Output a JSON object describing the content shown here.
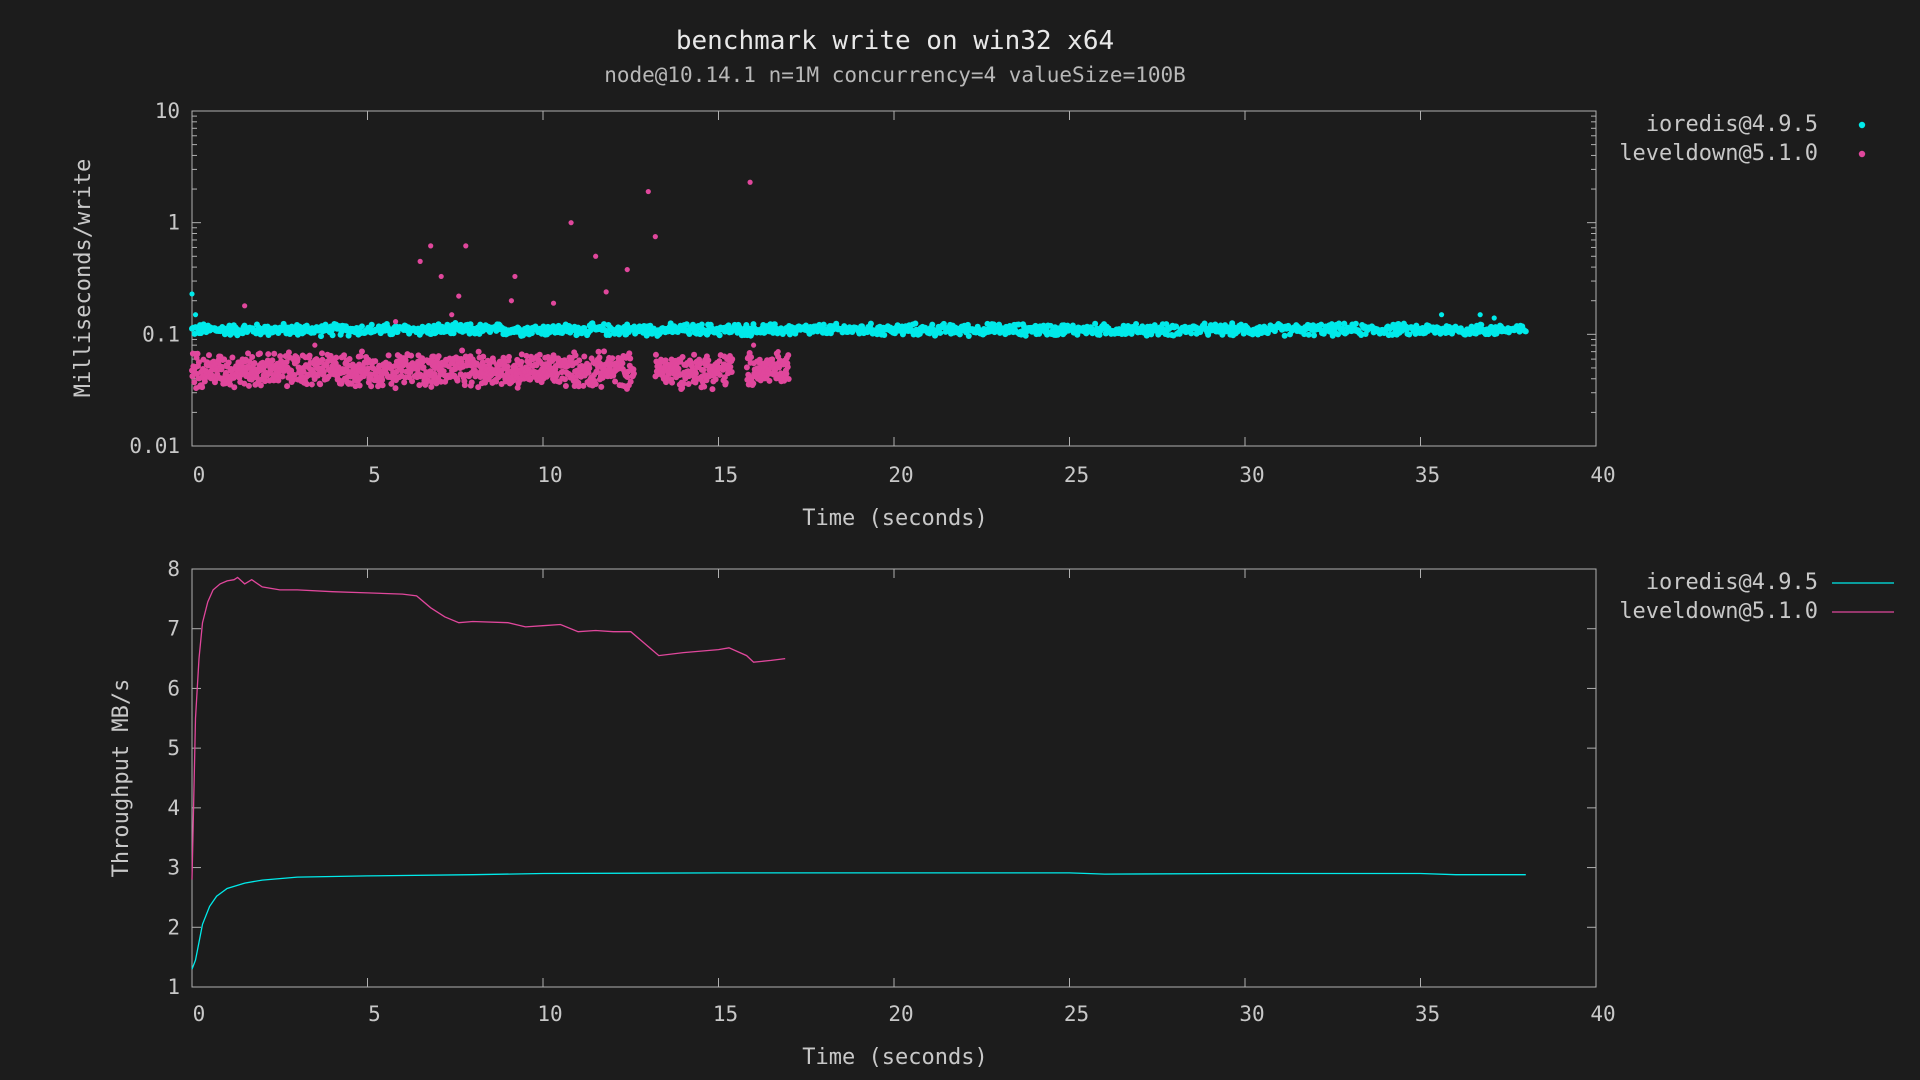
{
  "title": "benchmark write on win32 x64",
  "subtitle": "node@10.14.1 n=1M concurrency=4 valueSize=100B",
  "colors": {
    "ioredis": "#00eaea",
    "leveldown": "#e0479c"
  },
  "chart_data": [
    {
      "type": "scatter",
      "ylabel": "Milliseconds/write",
      "xlabel": "Time (seconds)",
      "yscale": "log",
      "xlim": [
        0,
        40
      ],
      "ylim": [
        0.01,
        10
      ],
      "x_ticks": [
        "0",
        "5",
        "10",
        "15",
        "20",
        "25",
        "30",
        "35",
        "40"
      ],
      "y_ticks": [
        "0.01",
        "0.1",
        "1",
        "10"
      ],
      "legend_position": "outside-top-right",
      "series": [
        {
          "name": "ioredis@4.9.5",
          "x_range": [
            0,
            38
          ],
          "typical_y": 0.11,
          "outliers": [
            [
              0,
              0.23
            ],
            [
              0.1,
              0.15
            ],
            [
              35.6,
              0.15
            ],
            [
              36.7,
              0.15
            ],
            [
              37.1,
              0.14
            ]
          ]
        },
        {
          "name": "leveldown@5.1.0",
          "x_range": [
            0,
            17
          ],
          "typical_y": 0.048,
          "gaps": [
            [
              12.6,
              13.2
            ],
            [
              15.4,
              15.8
            ]
          ],
          "outliers": [
            [
              1.5,
              0.18
            ],
            [
              3.5,
              0.08
            ],
            [
              5.8,
              0.13
            ],
            [
              6.5,
              0.45
            ],
            [
              6.8,
              0.62
            ],
            [
              7.1,
              0.33
            ],
            [
              7.4,
              0.15
            ],
            [
              7.6,
              0.22
            ],
            [
              7.8,
              0.62
            ],
            [
              9.2,
              0.33
            ],
            [
              9.1,
              0.2
            ],
            [
              10.3,
              0.19
            ],
            [
              10.8,
              1.0
            ],
            [
              11.5,
              0.5
            ],
            [
              11.8,
              0.24
            ],
            [
              12.4,
              0.38
            ],
            [
              13.0,
              1.9
            ],
            [
              13.2,
              0.75
            ],
            [
              15.9,
              2.3
            ],
            [
              16.0,
              0.08
            ],
            [
              16.7,
              0.07
            ]
          ]
        }
      ]
    },
    {
      "type": "line",
      "ylabel": "Throughput MB/s",
      "xlabel": "Time (seconds)",
      "xlim": [
        0,
        40
      ],
      "ylim": [
        1,
        8
      ],
      "x_ticks": [
        "0",
        "5",
        "10",
        "15",
        "20",
        "25",
        "30",
        "35",
        "40"
      ],
      "y_ticks": [
        "1",
        "2",
        "3",
        "4",
        "5",
        "6",
        "7",
        "8"
      ],
      "legend_position": "outside-top-right",
      "series": [
        {
          "name": "ioredis@4.9.5",
          "x": [
            0,
            0.1,
            0.2,
            0.3,
            0.5,
            0.7,
            1.0,
            1.5,
            2.0,
            3.0,
            5.0,
            8.0,
            10.0,
            15.0,
            20.0,
            25.0,
            26.0,
            30.0,
            35.0,
            36.0,
            38.0
          ],
          "y": [
            1.3,
            1.45,
            1.75,
            2.05,
            2.35,
            2.52,
            2.65,
            2.74,
            2.79,
            2.84,
            2.86,
            2.88,
            2.9,
            2.91,
            2.91,
            2.91,
            2.89,
            2.9,
            2.9,
            2.88,
            2.88
          ]
        },
        {
          "name": "leveldown@5.1.0",
          "x": [
            0,
            0.1,
            0.2,
            0.3,
            0.45,
            0.6,
            0.8,
            1.0,
            1.2,
            1.3,
            1.5,
            1.7,
            2.0,
            2.5,
            3.0,
            4.0,
            5.0,
            6.0,
            6.4,
            6.8,
            7.2,
            7.6,
            8.0,
            9.0,
            9.5,
            10.0,
            10.5,
            11.0,
            11.5,
            12.0,
            12.5,
            13.0,
            13.3,
            14.0,
            15.0,
            15.3,
            15.8,
            16.0,
            16.5,
            16.9
          ],
          "y": [
            2.8,
            5.5,
            6.5,
            7.1,
            7.45,
            7.65,
            7.75,
            7.8,
            7.82,
            7.86,
            7.75,
            7.82,
            7.7,
            7.65,
            7.65,
            7.62,
            7.6,
            7.58,
            7.55,
            7.35,
            7.2,
            7.1,
            7.12,
            7.1,
            7.03,
            7.05,
            7.07,
            6.95,
            6.97,
            6.95,
            6.95,
            6.7,
            6.55,
            6.6,
            6.65,
            6.68,
            6.55,
            6.44,
            6.47,
            6.5
          ]
        }
      ]
    }
  ]
}
